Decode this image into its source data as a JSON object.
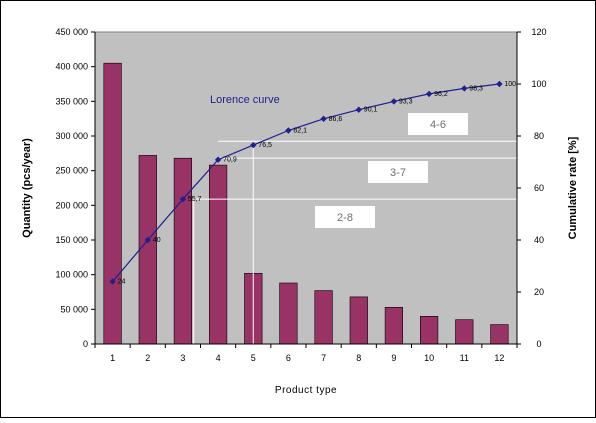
{
  "chart_data": {
    "type": "bar",
    "xlabel": "Product type",
    "ylabel": "Quantity (pcs/year)",
    "y2label": "Cumulative rate [%]",
    "categories": [
      "1",
      "2",
      "3",
      "4",
      "5",
      "6",
      "7",
      "8",
      "9",
      "10",
      "11",
      "12"
    ],
    "ylim": [
      0,
      450000
    ],
    "yticks": [
      "0",
      "50 000",
      "100 000",
      "150 000",
      "200 000",
      "250 000",
      "300 000",
      "350 000",
      "400 000",
      "450 000"
    ],
    "y2lim": [
      0,
      120
    ],
    "y2ticks": [
      "0",
      "20",
      "40",
      "60",
      "80",
      "100",
      "120"
    ],
    "grid": false,
    "series": [
      {
        "type": "bar",
        "values": [
          405000,
          272000,
          268000,
          258000,
          102000,
          88000,
          77000,
          68000,
          53000,
          40000,
          35000,
          28000
        ],
        "color": "#993366"
      },
      {
        "type": "line",
        "name": "Lorence curve",
        "axis": "right",
        "values": [
          24,
          40,
          55.7,
          70.9,
          76.5,
          82.1,
          86.6,
          90.1,
          93.3,
          96.2,
          98.3,
          100
        ],
        "labels": [
          "24",
          "40",
          "55,7",
          "70,9",
          "76,5",
          "82,1",
          "86,6",
          "90,1",
          "93,3",
          "96,2",
          "98,3",
          "100"
        ],
        "color": "#1f1f8f"
      }
    ],
    "annotations": [
      {
        "label": "4-6",
        "level": 78
      },
      {
        "label": "3-7",
        "level": 71.5
      },
      {
        "label": "2-8",
        "level": 55.7
      }
    ],
    "colors": {
      "plot_background": "#c0c0c0",
      "bars": "#993366",
      "line": "#1f1f8f",
      "guides": "#ffffff"
    }
  }
}
